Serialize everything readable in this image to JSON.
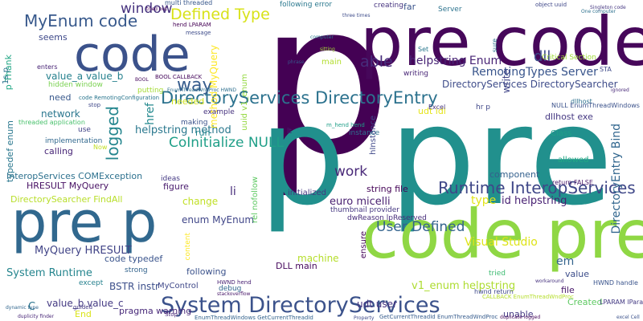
{
  "words": [
    {
      "text": "p",
      "color": "#440154"
    },
    {
      "text": "pre code",
      "color": "#46075a"
    },
    {
      "text": "p pre",
      "color": "#21908d"
    },
    {
      "text": "code pre",
      "color": "#8fd744"
    },
    {
      "text": "code",
      "color": "#3b528b"
    },
    {
      "text": "pre p",
      "color": "#31688e"
    },
    {
      "text": "System DirectoryServices",
      "color": "#3b528b"
    },
    {
      "text": "DirectoryServices DirectoryEntry",
      "color": "#2c728e"
    },
    {
      "text": "Runtime InteropServices",
      "color": "#3f4788"
    },
    {
      "text": "MyEnum code",
      "color": "#38598c"
    },
    {
      "text": "Defined Type",
      "color": "#d8e219"
    },
    {
      "text": "window",
      "color": "#46327e"
    },
    {
      "text": "way",
      "color": "#365c8d"
    },
    {
      "text": "logged",
      "color": "#24868e"
    },
    {
      "text": "CoInitialize NULL",
      "color": "#1f9f88"
    },
    {
      "text": "work",
      "color": "#482878"
    },
    {
      "text": "User Defined",
      "color": "#33638d"
    },
    {
      "text": "able",
      "color": "#472d7b"
    },
    {
      "text": "dll",
      "color": "#3e4a89"
    },
    {
      "text": "helpstring Enum",
      "color": "#482475"
    },
    {
      "text": "RemotingTypes Server",
      "color": "#39558c"
    },
    {
      "text": "DirectoryServices DirectorySearcher",
      "color": "#3e4c8a"
    },
    {
      "text": "helpstring method",
      "color": "#2a788e"
    },
    {
      "text": "InteropServices COMException",
      "color": "#2d718e"
    },
    {
      "text": "HRESULT MyQuery",
      "color": "#471063"
    },
    {
      "text": "DirectorySearcher FindAll",
      "color": "#b8de29"
    },
    {
      "text": "System Runtime",
      "color": "#25858e"
    },
    {
      "text": "MyQuery HRESULT",
      "color": "#414487"
    },
    {
      "text": "code typedef",
      "color": "#3a548c"
    },
    {
      "text": "Visual Studio",
      "color": "#dde318"
    },
    {
      "text": "id helpstring",
      "color": "#482173"
    },
    {
      "text": "euro micelli",
      "color": "#481f70"
    },
    {
      "text": "type",
      "color": "#e2e418"
    },
    {
      "text": "v1_enum helpstring",
      "color": "#addc30"
    },
    {
      "text": "DirectoryEntry Bind",
      "color": "#31668e"
    },
    {
      "text": "value_a value_b",
      "color": "#26818e"
    },
    {
      "text": "method MyQuery",
      "color": "#fde725"
    },
    {
      "text": "href",
      "color": "#23898e"
    },
    {
      "text": "enum MyEnum",
      "color": "#404688"
    },
    {
      "text": "value_b value_c",
      "color": "#443a83"
    },
    {
      "text": "BSTR instr",
      "color": "#3c4f8a"
    },
    {
      "text": "udt user",
      "color": "#463480"
    },
    {
      "text": "Created",
      "color": "#5ec962"
    },
    {
      "text": "machine",
      "color": "#b5de2b"
    },
    {
      "text": "em",
      "color": "#33638d"
    },
    {
      "text": "value",
      "color": "#3d4d8a"
    },
    {
      "text": "component",
      "color": "#34608d"
    },
    {
      "text": "li",
      "color": "#472c7a"
    },
    {
      "text": "change",
      "color": "#c0df25"
    },
    {
      "text": "figure",
      "color": "#481b6d"
    },
    {
      "text": "network",
      "color": "#2a768e"
    },
    {
      "text": "need",
      "color": "#38588c"
    },
    {
      "text": "seems",
      "color": "#3e4989"
    },
    {
      "text": "run",
      "color": "#24878e"
    },
    {
      "text": "needed",
      "color": "#d2e21b"
    },
    {
      "text": "file",
      "color": "#48186a"
    },
    {
      "text": "typedef enum",
      "color": "#2a778e"
    },
    {
      "text": "calling",
      "color": "#482677"
    },
    {
      "text": "p Thank",
      "color": "#22a785"
    },
    {
      "text": "uuid v1_enum",
      "color": "#94d840"
    },
    {
      "text": "udt idl",
      "color": "#e5e419"
    },
    {
      "text": "string file",
      "color": "#450457"
    },
    {
      "text": "initialized",
      "color": "#453781"
    },
    {
      "text": "DLL main",
      "color": "#46085c"
    },
    {
      "text": "dllhost exe",
      "color": "#453882"
    },
    {
      "text": "hInstance",
      "color": "#3f4889"
    },
    {
      "text": "following",
      "color": "#3b528b"
    },
    {
      "text": "pragma warning",
      "color": "#482979"
    },
    {
      "text": "End",
      "color": "#dae319"
    },
    {
      "text": "unable",
      "color": "#443983"
    },
    {
      "text": "C",
      "color": "#2b748e"
    },
    {
      "text": "write",
      "color": "#404588"
    },
    {
      "text": "far",
      "color": "#3a538b"
    },
    {
      "text": "Server",
      "color": "#2c738e"
    },
    {
      "text": "creating",
      "color": "#46337f"
    },
    {
      "text": "main",
      "color": "#b2dd2d"
    },
    {
      "text": "allowed",
      "color": "#22a884"
    },
    {
      "text": "return FALSE",
      "color": "#481769"
    },
    {
      "text": "instance",
      "color": "#2e6f8e"
    },
    {
      "text": "tried",
      "color": "#3fbc73"
    },
    {
      "text": "MyControl",
      "color": "#3f4889"
    },
    {
      "text": "strong",
      "color": "#33638d"
    },
    {
      "text": "ideas",
      "color": "#443983"
    },
    {
      "text": "content",
      "color": "#fde725"
    },
    {
      "text": "debug",
      "color": "#31668e"
    },
    {
      "text": "ensure",
      "color": "#46075a"
    },
    {
      "text": "Class",
      "color": "#1f9f88"
    },
    {
      "text": "hwnd return",
      "color": "#3e4989"
    },
    {
      "text": "writing",
      "color": "#482677"
    },
    {
      "text": "multi threaded",
      "color": "#38588c"
    },
    {
      "text": "following error",
      "color": "#2a788e"
    },
    {
      "text": "rel nofollow",
      "color": "#5ec962"
    },
    {
      "text": "1s p",
      "color": "#2c728e"
    },
    {
      "text": "example",
      "color": "#46327e"
    },
    {
      "text": "making",
      "color": "#3b528b"
    },
    {
      "text": "implementation",
      "color": "#31688e"
    },
    {
      "text": "use",
      "color": "#414487"
    },
    {
      "text": "hidden window",
      "color": "#7ad151"
    },
    {
      "text": "putting",
      "color": "#a5db36"
    },
    {
      "text": "STA",
      "color": "#3e4a89"
    },
    {
      "text": "thumbnail provider",
      "color": "#453781"
    },
    {
      "text": "dwReason lpReserved",
      "color": "#472d7b"
    },
    {
      "text": "threaded application",
      "color": "#4ac16d"
    },
    {
      "text": "Critical Section",
      "color": "#a0da39"
    },
    {
      "text": "dllhost",
      "color": "#2d718e"
    },
    {
      "text": "NULL EnumThreadWindows",
      "color": "#3b528b"
    },
    {
      "text": "lt",
      "color": "#481f70"
    },
    {
      "text": "hr p",
      "color": "#3f4788"
    },
    {
      "text": "Excel",
      "color": "#46337f"
    },
    {
      "text": "Set",
      "color": "#2a788e"
    },
    {
      "text": "Now",
      "color": "#c2df23"
    },
    {
      "text": "HWND handle",
      "color": "#3a548c"
    },
    {
      "text": "LPARAM lParam",
      "color": "#443a83"
    },
    {
      "text": "HWND hend",
      "color": "#482173"
    },
    {
      "text": "except",
      "color": "#26818e"
    },
    {
      "text": "BOOL CALLBACK",
      "color": "#46085c"
    },
    {
      "text": "EnumThreadWndProc HWND",
      "color": "#2e6f8e"
    },
    {
      "text": "hend LPARAM",
      "color": "#440154"
    },
    {
      "text": "message",
      "color": "#3e4c8a"
    },
    {
      "text": "enters",
      "color": "#482475"
    },
    {
      "text": "code RemotingConfiguration",
      "color": "#2a768e"
    },
    {
      "text": "stop",
      "color": "#3f4889"
    },
    {
      "text": "m_hend hend",
      "color": "#1f9f88"
    },
    {
      "text": "GetCurrentThreadId EnumThreadWndProc",
      "color": "#365c8d"
    },
    {
      "text": "EnumThreadWindows GetCurrentThreadId",
      "color": "#33638d"
    },
    {
      "text": "CALLBACK EnumThreadWndProc",
      "color": "#b5de2b"
    },
    {
      "text": "stackoverflow",
      "color": "#481769"
    },
    {
      "text": "Stop",
      "color": "#482878"
    },
    {
      "text": "guided",
      "color": "#443983"
    },
    {
      "text": "dynamic type",
      "color": "#31668e"
    },
    {
      "text": "duplicate logged",
      "color": "#46075a"
    },
    {
      "text": "excel Cell",
      "color": "#3b528b"
    },
    {
      "text": "duplicity finder",
      "color": "#482677"
    },
    {
      "text": "Property",
      "color": "#3e4989"
    },
    {
      "text": "workaround",
      "color": "#46327e"
    },
    {
      "text": "sure",
      "color": "#2c728e"
    },
    {
      "text": "phrase",
      "color": "#38588c"
    },
    {
      "text": "computer",
      "color": "#2a788e"
    },
    {
      "text": "sitting",
      "color": "#a5db36"
    },
    {
      "text": "object uuid",
      "color": "#3f4788"
    },
    {
      "text": "Singleton code",
      "color": "#453781"
    },
    {
      "text": "ignored",
      "color": "#482979"
    },
    {
      "text": "three times",
      "color": "#3e4c8a"
    },
    {
      "text": "tried out",
      "color": "#440154"
    },
    {
      "text": "One computer",
      "color": "#2d718e"
    },
    {
      "text": "BOOL",
      "color": "#46085c"
    }
  ]
}
